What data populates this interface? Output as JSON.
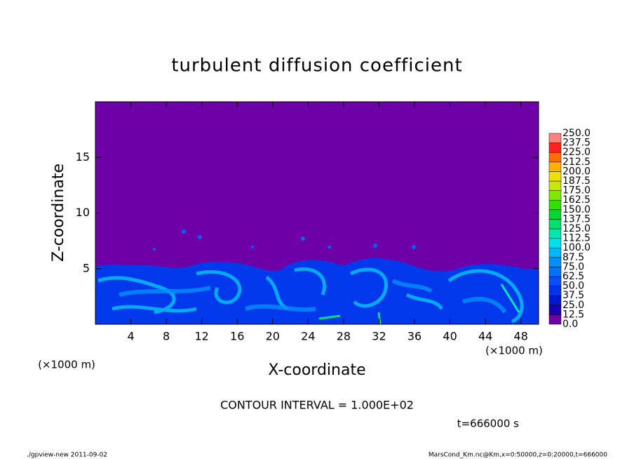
{
  "chart_data": {
    "type": "contour",
    "title": "turbulent diffusion coefficient",
    "xlabel": "X-coordinate",
    "ylabel": "Z-coordinate",
    "xunit": "(×1000 m)",
    "yunit": "(×1000 m)",
    "xlim": [
      0,
      50
    ],
    "ylim": [
      0,
      20
    ],
    "xticks": [
      4,
      8,
      12,
      16,
      20,
      24,
      28,
      32,
      36,
      40,
      44,
      48
    ],
    "yticks": [
      5,
      10,
      15
    ],
    "colorbar": {
      "levels": [
        {
          "value": 0,
          "label": "0.0"
        },
        {
          "value": 12.5,
          "label": "12.5"
        },
        {
          "value": 25,
          "label": "25.0"
        },
        {
          "value": 37.5,
          "label": "37.5"
        },
        {
          "value": 50,
          "label": "50.0"
        },
        {
          "value": 62.5,
          "label": "62.5"
        },
        {
          "value": 75,
          "label": "75.0"
        },
        {
          "value": 87.5,
          "label": "87.5"
        },
        {
          "value": 100,
          "label": "100.0"
        },
        {
          "value": 112.5,
          "label": "112.5"
        },
        {
          "value": 125,
          "label": "125.0"
        },
        {
          "value": 137.5,
          "label": "137.5"
        },
        {
          "value": 150,
          "label": "150.0"
        },
        {
          "value": 162.5,
          "label": "162.5"
        },
        {
          "value": 175,
          "label": "175.0"
        },
        {
          "value": 187.5,
          "label": "187.5"
        },
        {
          "value": 200,
          "label": "200.0"
        },
        {
          "value": 212.5,
          "label": "212.5"
        },
        {
          "value": 225,
          "label": "225.0"
        },
        {
          "value": 237.5,
          "label": "237.5"
        },
        {
          "value": 250,
          "label": "250.0"
        }
      ],
      "colors": [
        "#6e00a8",
        "#1800b8",
        "#0018d0",
        "#0034e8",
        "#0050ff",
        "#0070ff",
        "#0090ff",
        "#00b8ff",
        "#00e0e8",
        "#00e8b0",
        "#00e070",
        "#00d830",
        "#30e000",
        "#80e800",
        "#c8e800",
        "#f0e000",
        "#ffb000",
        "#ff7000",
        "#ff2020",
        "#ff8080"
      ]
    },
    "contour_interval": "CONTOUR INTERVAL = 1.000E+02",
    "time_label": "t=666000 s",
    "footer_left": "./gpview-new  2011-09-02",
    "footer_right": "MarsCond_Km.nc@Km,x=0:50000,z=0:20000,t=666000"
  }
}
